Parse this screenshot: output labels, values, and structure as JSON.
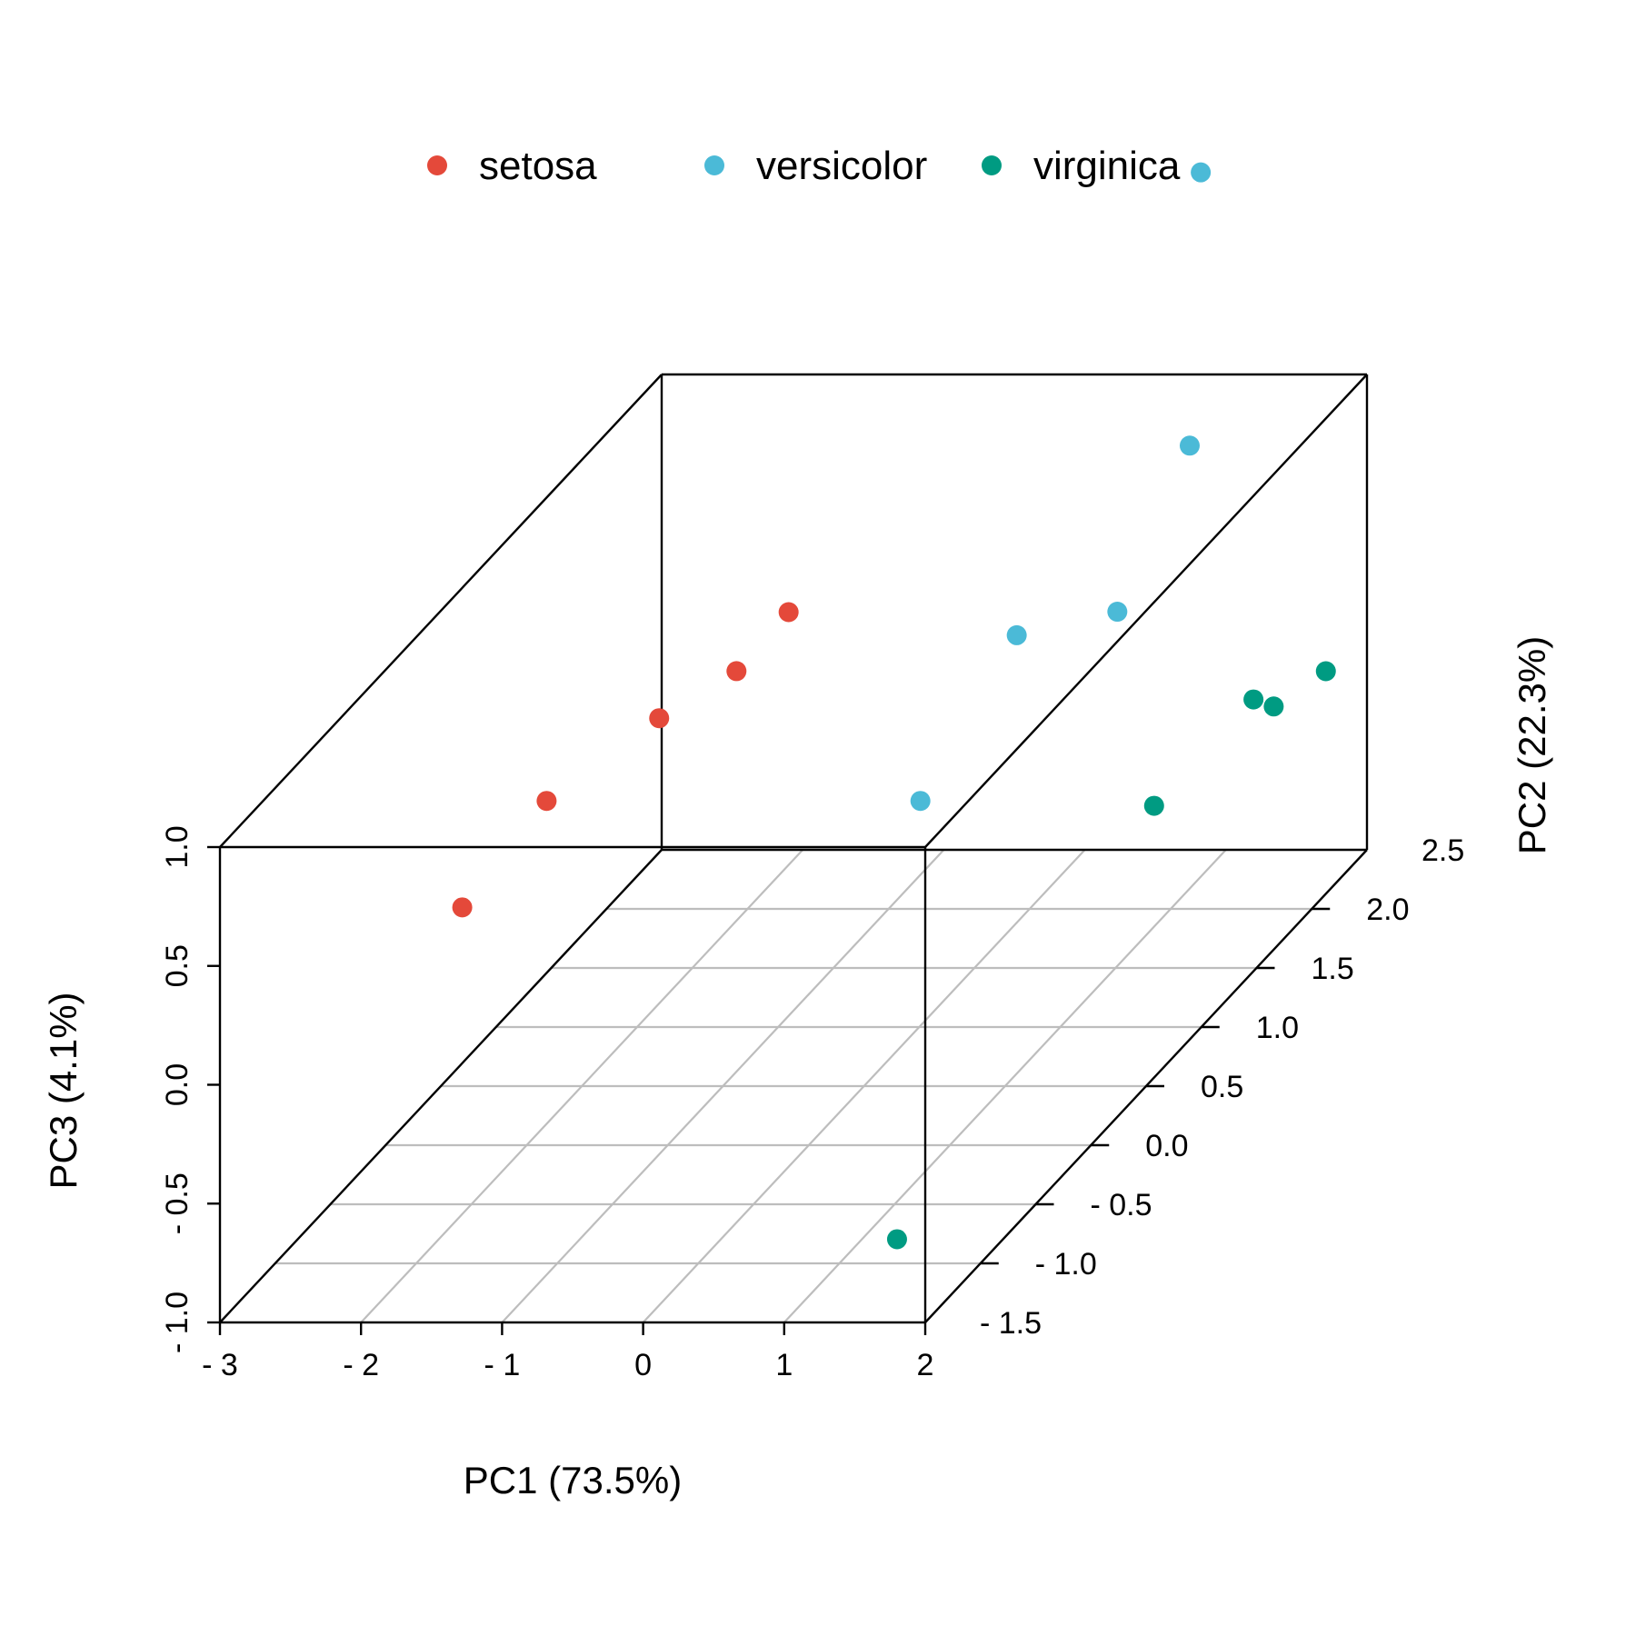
{
  "chart_data": {
    "type": "scatter",
    "title": "",
    "xlabel": "PC1 (73.5%)",
    "ylabel": "PC2 (22.3%)",
    "zlabel": "PC3 (4.1%)",
    "xlim": [
      -3,
      2
    ],
    "ylim": [
      -1.5,
      2.5
    ],
    "zlim": [
      -1.0,
      1.0
    ],
    "x_ticks": [
      "- 3",
      "- 2",
      "- 1",
      "0",
      "1",
      "2"
    ],
    "y_ticks": [
      "- 1.5",
      "- 1.0",
      "- 0.5",
      "0.0",
      "0.5",
      "1.0",
      "1.5",
      "2.0",
      "2.5"
    ],
    "z_ticks": [
      "- 1.0",
      "- 0.5",
      "0.0",
      "0.5",
      "1.0"
    ],
    "grid": true,
    "legend_position": "top",
    "colors": {
      "setosa": "#e4493a",
      "versicolor": "#4bbad7",
      "virginica": "#009b82"
    },
    "series": [
      {
        "name": "setosa",
        "points": [
          {
            "x": -2.3,
            "y": -0.2,
            "z": 0.1
          },
          {
            "x": -2.25,
            "y": 0.5,
            "z": 0.2
          },
          {
            "x": -2.0,
            "y": 1.2,
            "z": 0.2
          },
          {
            "x": -2.0,
            "y": 1.9,
            "z": 0.05
          },
          {
            "x": -2.1,
            "y": 2.5,
            "z": 0.0
          }
        ]
      },
      {
        "name": "versicolor",
        "points": [
          {
            "x": 0.4,
            "y": 0.5,
            "z": 0.2
          },
          {
            "x": 0.3,
            "y": 1.5,
            "z": 0.4
          },
          {
            "x": 0.7,
            "y": 1.9,
            "z": 0.3
          },
          {
            "x": 0.9,
            "y": 2.3,
            "z": 0.8
          },
          {
            "x": 0.9,
            "y": 2.4,
            "z": 1.9
          }
        ]
      },
      {
        "name": "virginica",
        "points": [
          {
            "x": 1.8,
            "y": -1.5,
            "z": -0.65
          },
          {
            "x": 1.9,
            "y": 0.7,
            "z": 0.08
          },
          {
            "x": 2.2,
            "y": 1.4,
            "z": 0.15
          },
          {
            "x": 1.9,
            "y": 1.6,
            "z": 0.08
          },
          {
            "x": 2.1,
            "y": 2.0,
            "z": 0.0
          }
        ]
      }
    ]
  }
}
